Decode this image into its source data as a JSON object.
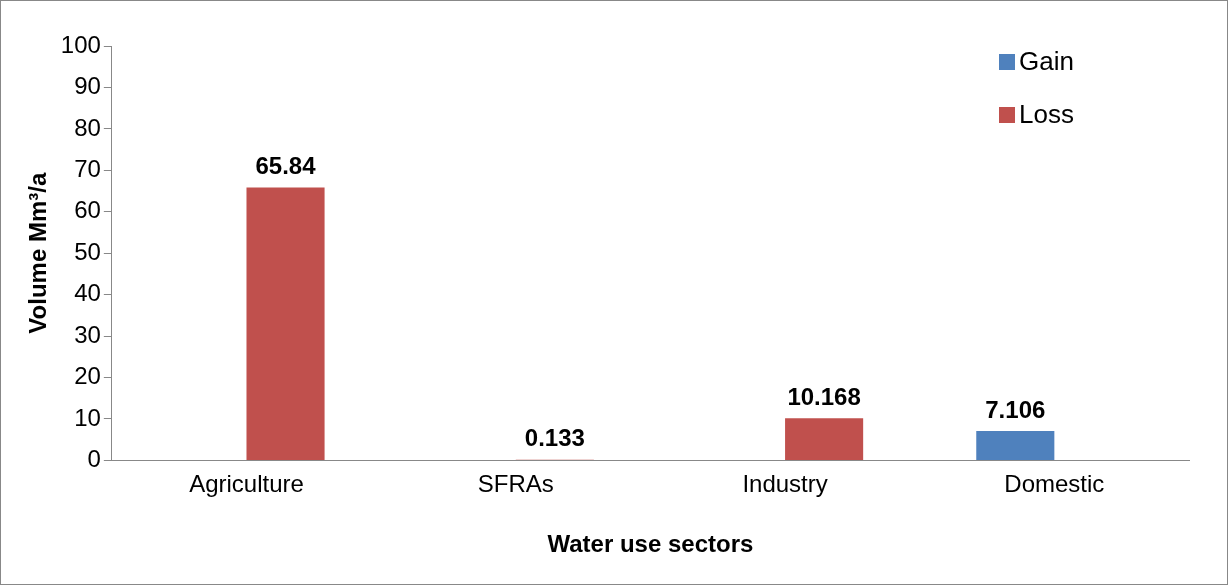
{
  "chart_data": {
    "type": "bar",
    "xlabel": "Water use sectors",
    "ylabel": "Volume Mm³/a",
    "categories": [
      "Agriculture",
      "SFRAs",
      "Industry",
      "Domestic"
    ],
    "series": [
      {
        "name": "Gain",
        "color": "#4f81bd",
        "values": [
          null,
          null,
          null,
          7.106
        ]
      },
      {
        "name": "Loss",
        "color": "#c0504d",
        "values": [
          65.84,
          0.133,
          10.168,
          null
        ]
      }
    ],
    "ylim": [
      0,
      100
    ],
    "yticks": [
      0,
      10,
      20,
      30,
      40,
      50,
      60,
      70,
      80,
      90,
      100
    ],
    "grid": false,
    "legend": "top right",
    "data_labels": true
  }
}
